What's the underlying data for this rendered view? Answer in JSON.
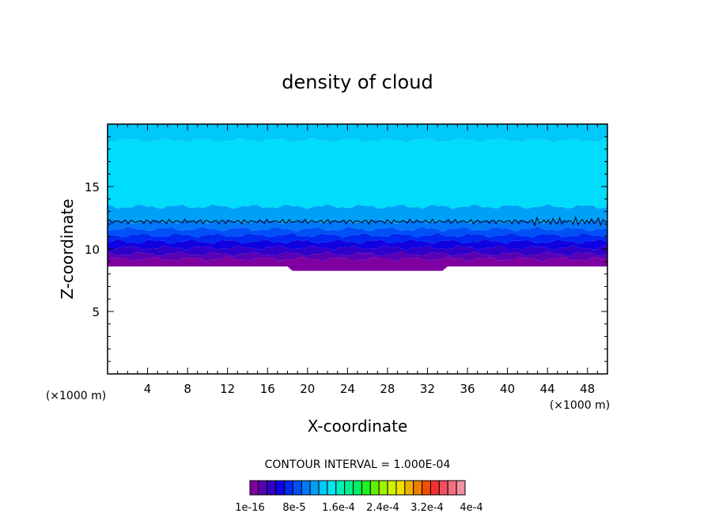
{
  "chart_data": {
    "type": "heatmap",
    "title": "density of cloud",
    "xlabel": "X-coordinate",
    "ylabel": "Z-coordinate",
    "x_unit": "(×1000 m)",
    "y_unit": "(×1000 m)",
    "xlim": [
      0,
      50
    ],
    "ylim": [
      0,
      20
    ],
    "x_ticks": [
      4,
      8,
      12,
      16,
      20,
      24,
      28,
      32,
      36,
      40,
      44,
      48
    ],
    "y_ticks": [
      5,
      10,
      15
    ],
    "contour_interval_label": "CONTOUR INTERVAL = 1.000E-04",
    "colorbar_labels": [
      "1e-16",
      "8e-5",
      "1.6e-4",
      "2.4e-4",
      "3.2e-4",
      "4e-4"
    ],
    "colorbar_colors": [
      "#7f00a0",
      "#5a00b4",
      "#3000c8",
      "#1000e0",
      "#0028f0",
      "#0050f8",
      "#0078f8",
      "#00a0f8",
      "#00c8f8",
      "#00e8f0",
      "#00f0c0",
      "#00f090",
      "#00f060",
      "#20f020",
      "#60f000",
      "#a0f000",
      "#d0f000",
      "#f0e000",
      "#f0b000",
      "#f08000",
      "#f05000",
      "#f03030",
      "#f05060",
      "#f07080",
      "#f090a0"
    ],
    "field_bands": [
      {
        "z_bottom": 8.6,
        "z_top": 9.2,
        "color": "#7f00a0"
      },
      {
        "z_bottom": 9.2,
        "z_top": 9.6,
        "color": "#5a00b4"
      },
      {
        "z_bottom": 9.6,
        "z_top": 10.1,
        "color": "#3000c8"
      },
      {
        "z_bottom": 10.1,
        "z_top": 10.6,
        "color": "#1000e0"
      },
      {
        "z_bottom": 10.6,
        "z_top": 11.1,
        "color": "#0028f0"
      },
      {
        "z_bottom": 11.1,
        "z_top": 11.6,
        "color": "#0050f8"
      },
      {
        "z_bottom": 11.6,
        "z_top": 12.2,
        "color": "#0078f8"
      },
      {
        "z_bottom": 12.2,
        "z_top": 13.4,
        "color": "#00a0f8"
      },
      {
        "z_bottom": 13.4,
        "z_top": 18.7,
        "color": "#00dcfc"
      },
      {
        "z_bottom": 18.7,
        "z_top": 20.0,
        "color": "#00c8f8"
      }
    ],
    "contour_z": 12.2
  }
}
